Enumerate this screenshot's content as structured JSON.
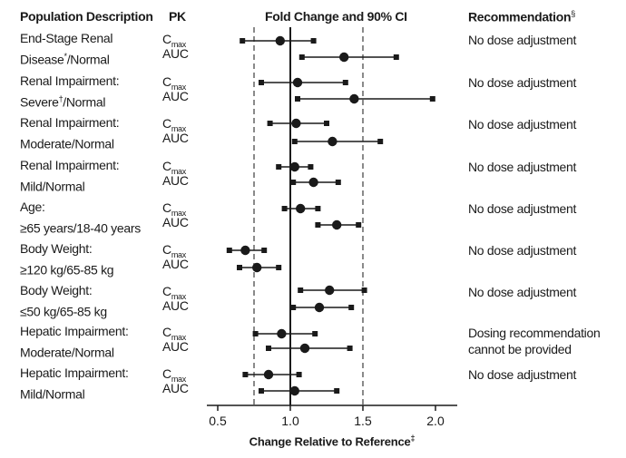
{
  "headers": {
    "population": "Population Description",
    "pk": "PK",
    "fold_change": "Fold Change and 90% CI",
    "recommendation": "Recommendation",
    "recommendation_mark": "§"
  },
  "pk_labels": {
    "cmax_base": "C",
    "cmax_sub": "max",
    "auc": "AUC"
  },
  "rows": [
    {
      "line1": "End-Stage Renal",
      "line2": "Disease",
      "mark": "*",
      "line2_tail": "/Normal",
      "recommendation": "No dose adjustment"
    },
    {
      "line1": "Renal Impairment:",
      "line2": "Severe",
      "mark": "†",
      "line2_tail": "/Normal",
      "recommendation": "No dose adjustment"
    },
    {
      "line1": "Renal Impairment:",
      "line2": "Moderate/Normal",
      "mark": "",
      "line2_tail": "",
      "recommendation": "No dose adjustment"
    },
    {
      "line1": "Renal Impairment:",
      "line2": "Mild/Normal",
      "mark": "",
      "line2_tail": "",
      "recommendation": "No dose adjustment"
    },
    {
      "line1": "Age:",
      "line2": "≥65 years/18-40 years",
      "mark": "",
      "line2_tail": "",
      "recommendation": "No dose adjustment"
    },
    {
      "line1": "Body Weight:",
      "line2": "≥120 kg/65-85 kg",
      "mark": "",
      "line2_tail": "",
      "recommendation": "No dose adjustment"
    },
    {
      "line1": "Body Weight:",
      "line2": "≤50 kg/65-85 kg",
      "mark": "",
      "line2_tail": "",
      "recommendation": "No dose adjustment"
    },
    {
      "line1": "Hepatic Impairment:",
      "line2": "Moderate/Normal",
      "mark": "",
      "line2_tail": "",
      "recommendation": "Dosing recommendation cannot be provided"
    },
    {
      "line1": "Hepatic Impairment:",
      "line2": "Mild/Normal",
      "mark": "",
      "line2_tail": "",
      "recommendation": "No dose adjustment"
    }
  ],
  "chart_data": {
    "type": "scatter",
    "subtype": "forest-plot",
    "title": "Fold Change and 90% CI",
    "xlabel": "Change Relative to Reference",
    "xlabel_mark": "‡",
    "xlim": [
      0.4,
      2.1
    ],
    "xticks": [
      0.5,
      1.0,
      1.5,
      2.0
    ],
    "xtick_labels": [
      "0.5",
      "1.0",
      "1.5",
      "2.0"
    ],
    "reference_line": 1.0,
    "dashed_lines": [
      0.75,
      1.5
    ],
    "series": [
      {
        "name": "Cmax",
        "values": [
          {
            "point": 0.93,
            "lo": 0.67,
            "hi": 1.16
          },
          {
            "point": 1.05,
            "lo": 0.8,
            "hi": 1.38
          },
          {
            "point": 1.04,
            "lo": 0.86,
            "hi": 1.25
          },
          {
            "point": 1.03,
            "lo": 0.92,
            "hi": 1.14
          },
          {
            "point": 1.07,
            "lo": 0.96,
            "hi": 1.19
          },
          {
            "point": 0.69,
            "lo": 0.58,
            "hi": 0.82
          },
          {
            "point": 1.27,
            "lo": 1.07,
            "hi": 1.51
          },
          {
            "point": 0.94,
            "lo": 0.76,
            "hi": 1.17
          },
          {
            "point": 0.85,
            "lo": 0.69,
            "hi": 1.06
          }
        ]
      },
      {
        "name": "AUC",
        "values": [
          {
            "point": 1.37,
            "lo": 1.08,
            "hi": 1.73
          },
          {
            "point": 1.44,
            "lo": 1.05,
            "hi": 1.98
          },
          {
            "point": 1.29,
            "lo": 1.03,
            "hi": 1.62
          },
          {
            "point": 1.16,
            "lo": 1.02,
            "hi": 1.33
          },
          {
            "point": 1.32,
            "lo": 1.19,
            "hi": 1.47
          },
          {
            "point": 0.77,
            "lo": 0.65,
            "hi": 0.92
          },
          {
            "point": 1.2,
            "lo": 1.02,
            "hi": 1.42
          },
          {
            "point": 1.1,
            "lo": 0.85,
            "hi": 1.41
          },
          {
            "point": 1.03,
            "lo": 0.8,
            "hi": 1.32
          }
        ]
      }
    ],
    "colors": {
      "ink": "#1a1a1a",
      "dashed": "#8a8a8a"
    }
  }
}
